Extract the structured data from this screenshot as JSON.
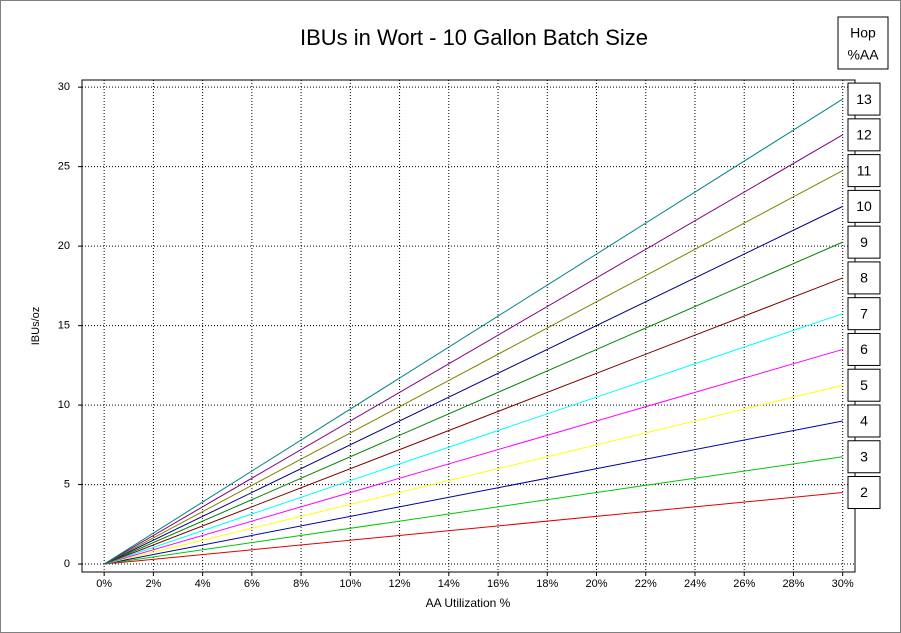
{
  "chart_data": {
    "type": "line",
    "title": "IBUs in Wort - 10 Gallon Batch Size",
    "x_label": "AA Utilization %",
    "y_label": "IBUs/oz",
    "legend_title_lines": [
      "Hop",
      "%AA"
    ],
    "x": [
      0,
      30
    ],
    "series": [
      {
        "name": "2",
        "color": "#e00000",
        "values": [
          0,
          4.5
        ]
      },
      {
        "name": "3",
        "color": "#00c800",
        "values": [
          0,
          6.75
        ]
      },
      {
        "name": "4",
        "color": "#0000a0",
        "values": [
          0,
          9
        ]
      },
      {
        "name": "5",
        "color": "#ffff00",
        "values": [
          0,
          11.25
        ]
      },
      {
        "name": "6",
        "color": "#ff00ff",
        "values": [
          0,
          13.5
        ]
      },
      {
        "name": "7",
        "color": "#00ffff",
        "values": [
          0,
          15.75
        ]
      },
      {
        "name": "8",
        "color": "#800000",
        "values": [
          0,
          18
        ]
      },
      {
        "name": "9",
        "color": "#008000",
        "values": [
          0,
          20.25
        ]
      },
      {
        "name": "10",
        "color": "#000080",
        "values": [
          0,
          22.5
        ]
      },
      {
        "name": "11",
        "color": "#808000",
        "values": [
          0,
          24.75
        ]
      },
      {
        "name": "12",
        "color": "#800080",
        "values": [
          0,
          27
        ]
      },
      {
        "name": "13",
        "color": "#008080",
        "values": [
          0,
          29.25
        ]
      }
    ],
    "xlim": [
      -0.9,
      30.5
    ],
    "xticks": [
      {
        "value": 0,
        "label": "0%"
      },
      {
        "value": 2,
        "label": "2%"
      },
      {
        "value": 4,
        "label": "4%"
      },
      {
        "value": 6,
        "label": "6%"
      },
      {
        "value": 8,
        "label": "8%"
      },
      {
        "value": 10,
        "label": "10%"
      },
      {
        "value": 12,
        "label": "12%"
      },
      {
        "value": 14,
        "label": "14%"
      },
      {
        "value": 16,
        "label": "16%"
      },
      {
        "value": 18,
        "label": "18%"
      },
      {
        "value": 20,
        "label": "20%"
      },
      {
        "value": 22,
        "label": "22%"
      },
      {
        "value": 24,
        "label": "24%"
      },
      {
        "value": 26,
        "label": "26%"
      },
      {
        "value": 28,
        "label": "28%"
      },
      {
        "value": 30,
        "label": "30%"
      }
    ],
    "ylim": [
      -0.5,
      30.45
    ],
    "yticks": [
      0,
      5,
      10,
      15,
      20,
      25,
      30
    ],
    "grid": true
  }
}
